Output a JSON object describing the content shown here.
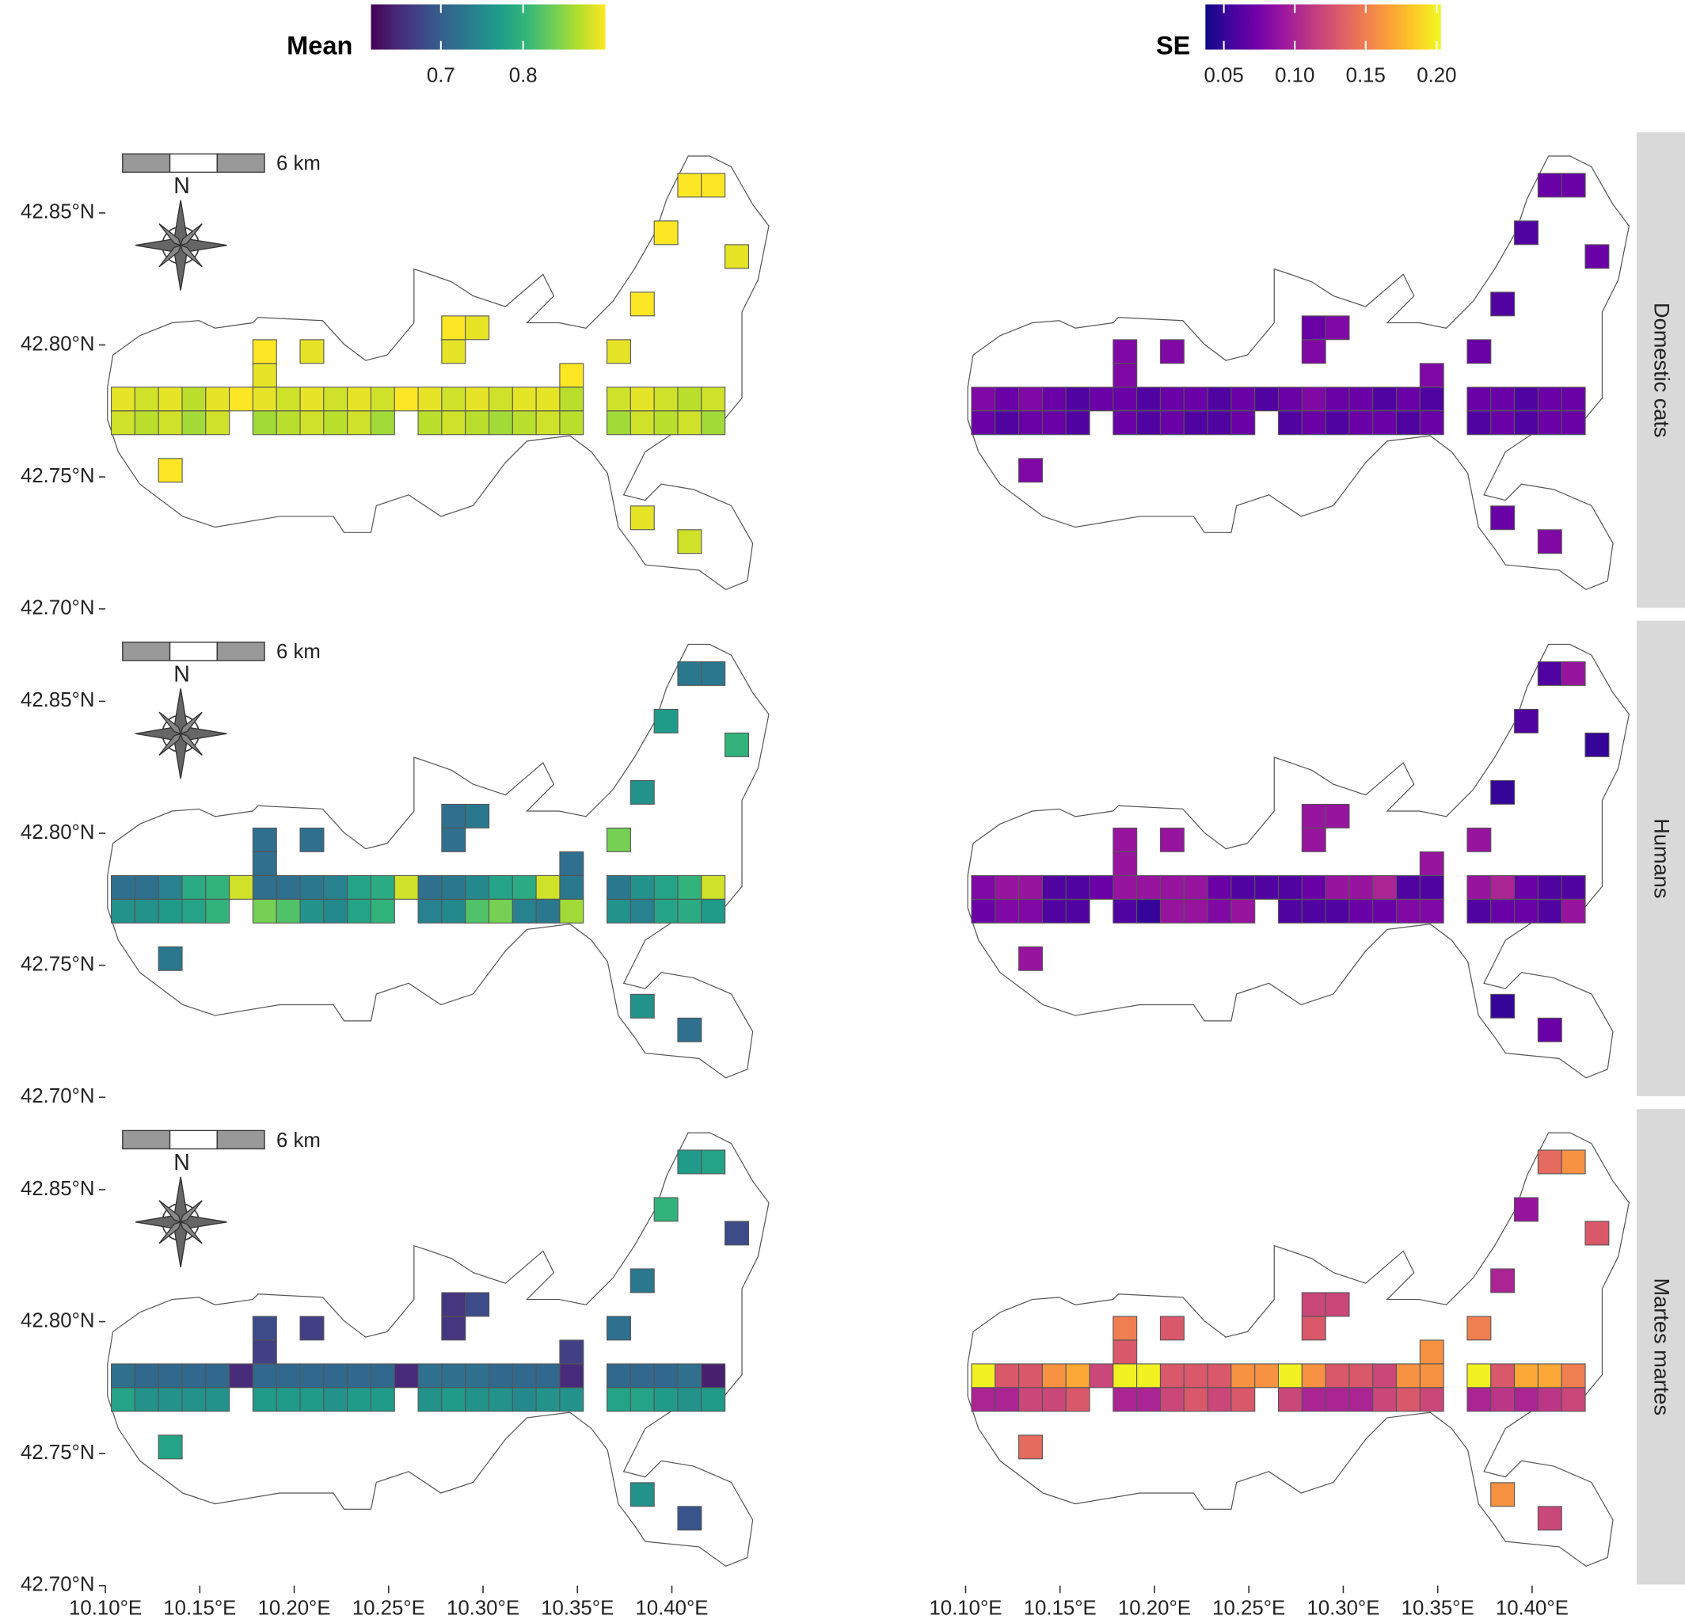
{
  "chart_data": {
    "type": "heatmap",
    "xlim": [
      10.1,
      10.45
    ],
    "ylim": [
      42.7,
      42.88
    ],
    "xticks": [
      {
        "value": 10.1,
        "label": "10.10°E"
      },
      {
        "value": 10.15,
        "label": "10.15°E"
      },
      {
        "value": 10.2,
        "label": "10.20°E"
      },
      {
        "value": 10.25,
        "label": "10.25°E"
      },
      {
        "value": 10.3,
        "label": "10.30°E"
      },
      {
        "value": 10.35,
        "label": "10.35°E"
      },
      {
        "value": 10.4,
        "label": "10.40°E"
      }
    ],
    "yticks": [
      {
        "value": 42.7,
        "label": "42.70°N"
      },
      {
        "value": 42.75,
        "label": "42.75°N"
      },
      {
        "value": 42.8,
        "label": "42.80°N"
      },
      {
        "value": 42.85,
        "label": "42.85°N"
      }
    ],
    "scale_bar": "6 km",
    "north": "N",
    "facets": [
      "Domestic cats",
      "Humans",
      "Martes martes"
    ],
    "cells": {
      "x": [
        10.1094,
        10.1219,
        10.1344,
        10.1469,
        10.1594,
        10.1719,
        10.1844,
        10.1969,
        10.2094,
        10.2219,
        10.2344,
        10.2469,
        10.2594,
        10.2719,
        10.2844,
        10.2969,
        10.3094,
        10.3219,
        10.3344,
        10.3469,
        10.3719,
        10.3844,
        10.3969,
        10.4094,
        10.4219,
        10.1094,
        10.1219,
        10.1344,
        10.1469,
        10.1594,
        10.1844,
        10.1969,
        10.2094,
        10.2219,
        10.2344,
        10.2469,
        10.2719,
        10.2844,
        10.2969,
        10.3094,
        10.3219,
        10.3344,
        10.3469,
        10.3719,
        10.3844,
        10.3969,
        10.4094,
        10.4219,
        10.1844,
        10.1844,
        10.2094,
        10.2844,
        10.2844,
        10.2969,
        10.3469,
        10.3719,
        10.3844,
        10.3969,
        10.4094,
        10.4219,
        10.4344,
        10.1344,
        10.3844,
        10.4094
      ],
      "y": [
        42.7795,
        42.7795,
        42.7795,
        42.7795,
        42.7795,
        42.7795,
        42.7795,
        42.7795,
        42.7795,
        42.7795,
        42.7795,
        42.7795,
        42.7795,
        42.7795,
        42.7795,
        42.7795,
        42.7795,
        42.7795,
        42.7795,
        42.7795,
        42.7795,
        42.7795,
        42.7795,
        42.7795,
        42.7795,
        42.7705,
        42.7705,
        42.7705,
        42.7705,
        42.7705,
        42.7705,
        42.7705,
        42.7705,
        42.7705,
        42.7705,
        42.7705,
        42.7705,
        42.7705,
        42.7705,
        42.7705,
        42.7705,
        42.7705,
        42.7705,
        42.7705,
        42.7705,
        42.7705,
        42.7705,
        42.7705,
        42.7885,
        42.7975,
        42.7975,
        42.7975,
        42.8065,
        42.8065,
        42.7885,
        42.7975,
        42.8155,
        42.8425,
        42.8605,
        42.8605,
        42.8335,
        42.7525,
        42.7345,
        42.7255
      ]
    },
    "columns": [
      {
        "title": "Mean",
        "colormap": "viridis",
        "lim": [
          0.615,
          0.9
        ],
        "ticks": [
          0.7,
          0.8
        ],
        "panels": [
          [
            0.89,
            0.88,
            0.89,
            0.87,
            0.89,
            0.9,
            0.89,
            0.88,
            0.89,
            0.88,
            0.89,
            0.88,
            0.9,
            0.89,
            0.88,
            0.89,
            0.88,
            0.89,
            0.89,
            0.87,
            0.88,
            0.89,
            0.88,
            0.87,
            0.88,
            0.88,
            0.87,
            0.88,
            0.86,
            0.88,
            0.86,
            0.87,
            0.88,
            0.87,
            0.88,
            0.86,
            0.87,
            0.88,
            0.87,
            0.86,
            0.87,
            0.88,
            0.87,
            0.86,
            0.88,
            0.87,
            0.88,
            0.86,
            0.89,
            0.9,
            0.89,
            0.89,
            0.9,
            0.89,
            0.9,
            0.89,
            0.9,
            0.9,
            0.9,
            0.9,
            0.89,
            0.9,
            0.89,
            0.88
          ],
          [
            0.72,
            0.72,
            0.74,
            0.79,
            0.8,
            0.88,
            0.72,
            0.72,
            0.73,
            0.74,
            0.78,
            0.79,
            0.88,
            0.72,
            0.73,
            0.75,
            0.78,
            0.79,
            0.88,
            0.73,
            0.73,
            0.76,
            0.78,
            0.8,
            0.88,
            0.76,
            0.76,
            0.77,
            0.78,
            0.8,
            0.84,
            0.82,
            0.76,
            0.75,
            0.78,
            0.8,
            0.74,
            0.75,
            0.82,
            0.84,
            0.74,
            0.73,
            0.86,
            0.76,
            0.74,
            0.78,
            0.79,
            0.77,
            0.72,
            0.72,
            0.72,
            0.72,
            0.72,
            0.73,
            0.72,
            0.84,
            0.76,
            0.77,
            0.73,
            0.73,
            0.8,
            0.73,
            0.76,
            0.72
          ],
          [
            0.72,
            0.71,
            0.71,
            0.71,
            0.71,
            0.65,
            0.71,
            0.71,
            0.71,
            0.71,
            0.71,
            0.71,
            0.65,
            0.72,
            0.72,
            0.72,
            0.71,
            0.71,
            0.71,
            0.65,
            0.71,
            0.71,
            0.71,
            0.72,
            0.64,
            0.78,
            0.76,
            0.76,
            0.76,
            0.76,
            0.77,
            0.77,
            0.77,
            0.76,
            0.77,
            0.77,
            0.76,
            0.77,
            0.76,
            0.76,
            0.75,
            0.76,
            0.76,
            0.78,
            0.78,
            0.77,
            0.76,
            0.77,
            0.67,
            0.68,
            0.67,
            0.66,
            0.66,
            0.68,
            0.67,
            0.72,
            0.73,
            0.8,
            0.77,
            0.78,
            0.68,
            0.78,
            0.76,
            0.69
          ]
        ]
      },
      {
        "title": "SE",
        "colormap": "plasma",
        "lim": [
          0.037,
          0.203
        ],
        "ticks": [
          0.05,
          {
            "value": 0.1,
            "label": "0.10"
          },
          0.15,
          {
            "value": 0.2,
            "label": "0.20"
          }
        ],
        "panels": [
          [
            0.08,
            0.07,
            0.08,
            0.07,
            0.06,
            0.07,
            0.07,
            0.06,
            0.07,
            0.07,
            0.06,
            0.07,
            0.06,
            0.07,
            0.08,
            0.07,
            0.07,
            0.06,
            0.07,
            0.06,
            0.07,
            0.07,
            0.06,
            0.07,
            0.07,
            0.07,
            0.06,
            0.07,
            0.07,
            0.06,
            0.07,
            0.06,
            0.07,
            0.06,
            0.06,
            0.07,
            0.06,
            0.07,
            0.06,
            0.07,
            0.07,
            0.06,
            0.07,
            0.06,
            0.07,
            0.06,
            0.07,
            0.07,
            0.08,
            0.08,
            0.08,
            0.08,
            0.07,
            0.08,
            0.08,
            0.07,
            0.06,
            0.06,
            0.07,
            0.07,
            0.07,
            0.08,
            0.07,
            0.08
          ],
          [
            0.08,
            0.09,
            0.09,
            0.06,
            0.06,
            0.07,
            0.09,
            0.09,
            0.09,
            0.09,
            0.07,
            0.06,
            0.06,
            0.06,
            0.07,
            0.09,
            0.09,
            0.1,
            0.06,
            0.06,
            0.09,
            0.1,
            0.07,
            0.06,
            0.06,
            0.07,
            0.08,
            0.08,
            0.06,
            0.06,
            0.06,
            0.05,
            0.09,
            0.09,
            0.08,
            0.09,
            0.06,
            0.06,
            0.06,
            0.07,
            0.07,
            0.08,
            0.08,
            0.06,
            0.07,
            0.07,
            0.06,
            0.09,
            0.09,
            0.09,
            0.09,
            0.09,
            0.09,
            0.09,
            0.09,
            0.09,
            0.05,
            0.06,
            0.06,
            0.09,
            0.05,
            0.09,
            0.05,
            0.07
          ],
          [
            0.2,
            0.13,
            0.13,
            0.16,
            0.17,
            0.12,
            0.2,
            0.2,
            0.13,
            0.13,
            0.13,
            0.16,
            0.16,
            0.2,
            0.16,
            0.13,
            0.13,
            0.12,
            0.16,
            0.16,
            0.2,
            0.13,
            0.17,
            0.17,
            0.15,
            0.1,
            0.1,
            0.12,
            0.12,
            0.13,
            0.1,
            0.1,
            0.12,
            0.13,
            0.12,
            0.13,
            0.12,
            0.1,
            0.1,
            0.1,
            0.12,
            0.13,
            0.12,
            0.1,
            0.11,
            0.1,
            0.11,
            0.12,
            0.13,
            0.15,
            0.13,
            0.13,
            0.12,
            0.12,
            0.16,
            0.15,
            0.1,
            0.09,
            0.14,
            0.16,
            0.13,
            0.14,
            0.16,
            0.12
          ]
        ]
      }
    ]
  }
}
